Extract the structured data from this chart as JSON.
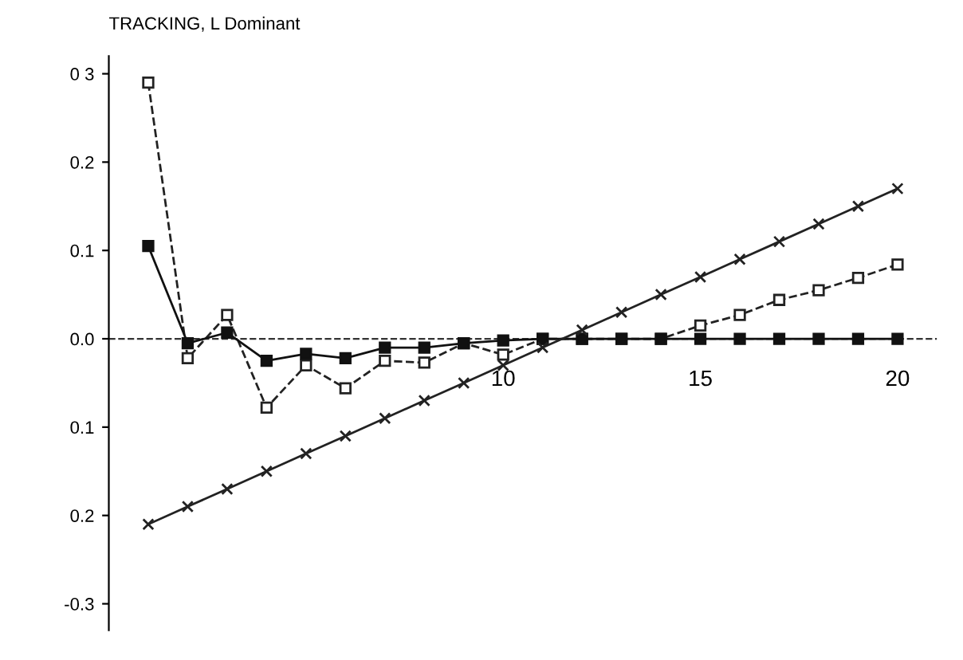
{
  "chart_data": {
    "type": "line",
    "title": "TRACKING, L Dominant",
    "x": [
      1,
      2,
      3,
      4,
      5,
      6,
      7,
      8,
      9,
      10,
      11,
      12,
      13,
      14,
      15,
      16,
      17,
      18,
      19,
      20
    ],
    "series": [
      {
        "color": "#222222",
        "marker": "square",
        "line_style": "dashed",
        "values": [
          0.29,
          -0.022,
          0.027,
          -0.078,
          -0.03,
          -0.056,
          -0.025,
          -0.027,
          -0.005,
          -0.018,
          0,
          0,
          0,
          0,
          0.015,
          0.027,
          0.044,
          0.055,
          0.069,
          0.084
        ]
      },
      {
        "color": "#111111",
        "marker": "square",
        "line_style": "solid",
        "values": [
          0.105,
          -0.005,
          0.007,
          -0.025,
          -0.017,
          -0.022,
          -0.01,
          -0.01,
          -0.005,
          -0.002,
          0,
          0,
          0,
          0,
          0,
          0,
          0,
          0,
          0,
          0
        ]
      },
      {
        "color": "#222222",
        "marker": "cross",
        "line_style": "solid",
        "values": [
          -0.21,
          -0.19,
          -0.17,
          -0.15,
          -0.13,
          -0.11,
          -0.09,
          -0.07,
          -0.05,
          -0.03,
          -0.01,
          0.01,
          0.03,
          0.05,
          0.07,
          0.09,
          0.11,
          0.13,
          0.15,
          0.17
        ]
      }
    ],
    "xlim": [
      0,
      21
    ],
    "xticks": [
      10,
      15,
      20
    ],
    "ylim": [
      -0.33,
      0.32
    ],
    "yticks": [
      {
        "value": 0.3,
        "label": "0 3"
      },
      {
        "value": 0.2,
        "label": "0.2"
      },
      {
        "value": 0.1,
        "label": "0.1"
      },
      {
        "value": 0.0,
        "label": "0.0"
      },
      {
        "value": -0.1,
        "label": "0.1"
      },
      {
        "value": -0.2,
        "label": "0.2"
      },
      {
        "value": -0.3,
        "label": "-0.3"
      }
    ],
    "ref_lines": [
      {
        "axis": "y",
        "value": 0,
        "line_style": "dashed",
        "color": "#333333"
      }
    ],
    "grid": false,
    "legend": false
  }
}
